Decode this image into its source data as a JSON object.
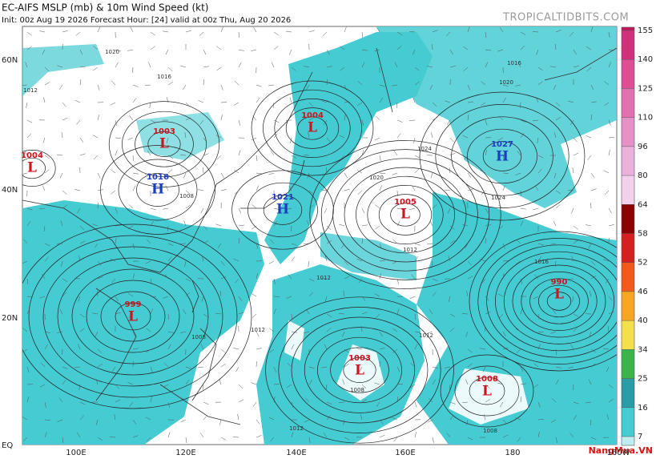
{
  "header": {
    "title": "EC-AIFS MSLP (mb) & 10m Wind Speed (kt)",
    "subtitle": "Init: 00z Aug 19 2026   Forecast Hour: [24]   valid at 00z Thu, Aug 20 2026",
    "brand": "TROPICALTIDBITS.COM"
  },
  "map": {
    "lat_labels": [
      "60N",
      "40N",
      "20N",
      "EQ"
    ],
    "lon_labels": [
      "100E",
      "120E",
      "140E",
      "160E",
      "180",
      "160W"
    ],
    "centers": [
      {
        "type": "L",
        "pressure": "1003"
      },
      {
        "type": "L",
        "pressure": "1004"
      },
      {
        "type": "H",
        "pressure": "1016"
      },
      {
        "type": "L",
        "pressure": "1004"
      },
      {
        "type": "H",
        "pressure": "1027"
      },
      {
        "type": "H",
        "pressure": "1021"
      },
      {
        "type": "L",
        "pressure": "1005"
      },
      {
        "type": "L",
        "pressure": "999"
      },
      {
        "type": "L",
        "pressure": "990"
      },
      {
        "type": "L",
        "pressure": "1003"
      },
      {
        "type": "L",
        "pressure": "1008"
      }
    ],
    "isobar_labels": [
      "1020",
      "1016",
      "1012",
      "1008",
      "1016",
      "1020",
      "1024",
      "1024",
      "1020",
      "1016",
      "1012",
      "1012",
      "1012",
      "1008",
      "1012",
      "1012",
      "1008",
      "1008"
    ]
  },
  "colorbar": {
    "ticks": [
      155,
      140,
      125,
      110,
      96,
      80,
      64,
      58,
      52,
      46,
      40,
      34,
      25,
      16,
      7
    ]
  },
  "watermark": "NangMua.VN"
}
